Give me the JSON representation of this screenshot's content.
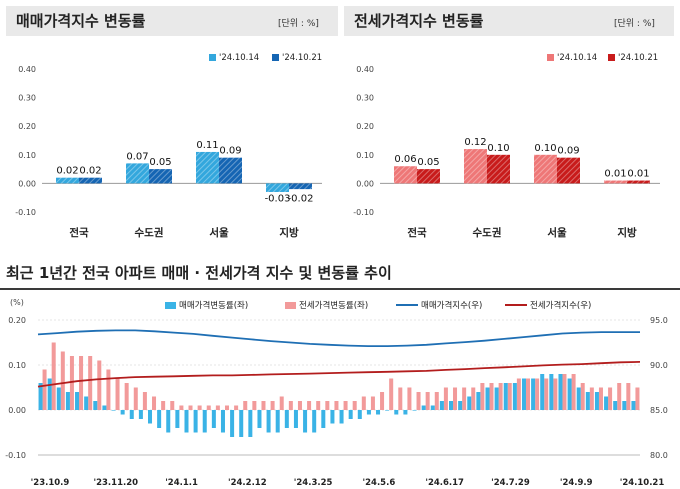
{
  "sales_panel": {
    "title": "매매가격지수 변동률",
    "unit": "[단위 : %]",
    "legend": [
      "'24.10.14",
      "'24.10.21"
    ],
    "colors": [
      "#33a7dd",
      "#1565b3"
    ]
  },
  "jeonse_panel": {
    "title": "전세가격지수 변동률",
    "unit": "[단위 : %]",
    "legend": [
      "'24.10.14",
      "'24.10.21"
    ],
    "colors": [
      "#ee7777",
      "#c81b1b"
    ]
  },
  "trend": {
    "title": "최근 1년간 전국 아파트 매매 · 전세가격 지수 및 변동률 추이",
    "left_unit": "(%)",
    "legend": [
      "매매가격변동률(좌)",
      "전세가격변동률(좌)",
      "매매가격지수(우)",
      "전세가격지수(우)"
    ],
    "colors": {
      "sales_rate": "#3ab3e6",
      "jeonse_rate": "#f29a9a",
      "sales_index": "#1f6fb4",
      "jeonse_index": "#b31d1d"
    }
  },
  "chart_data": [
    {
      "type": "bar",
      "title": "매매가격지수 변동률",
      "categories": [
        "전국",
        "수도권",
        "서울",
        "지방"
      ],
      "series": [
        {
          "name": "'24.10.14",
          "values": [
            0.02,
            0.07,
            0.11,
            -0.03
          ]
        },
        {
          "name": "'24.10.21",
          "values": [
            0.02,
            0.05,
            0.09,
            -0.02
          ]
        }
      ],
      "data_labels": [
        "0.02",
        "0.02",
        "0.07",
        "0.05",
        "0.11",
        "0.09",
        "-0.03",
        "-0.02"
      ],
      "ylim": [
        -0.1,
        0.4
      ],
      "yticks": [
        "-0.10",
        "0.00",
        "0.10",
        "0.20",
        "0.30",
        "0.40"
      ]
    },
    {
      "type": "bar",
      "title": "전세가격지수 변동률",
      "categories": [
        "전국",
        "수도권",
        "서울",
        "지방"
      ],
      "series": [
        {
          "name": "'24.10.14",
          "values": [
            0.06,
            0.12,
            0.1,
            0.01
          ]
        },
        {
          "name": "'24.10.21",
          "values": [
            0.05,
            0.1,
            0.09,
            0.01
          ]
        }
      ],
      "data_labels": [
        "0.06",
        "0.05",
        "0.12",
        "0.10",
        "0.10",
        "0.09",
        "0.01",
        "0.01"
      ],
      "ylim": [
        -0.1,
        0.4
      ],
      "yticks": [
        "-0.10",
        "0.00",
        "0.10",
        "0.20",
        "0.30",
        "0.40"
      ]
    },
    {
      "type": "bar+line",
      "title": "최근 1년간 전국 아파트 매매 · 전세가격 지수 및 변동률 추이",
      "x_tick_labels": [
        "'23.10.9",
        "'23.11.20",
        "'24.1.1",
        "'24.2.12",
        "'24.3.25",
        "'24.5.6",
        "'24.6.17",
        "'24.7.29",
        "'24.9.9",
        "'24.10.21"
      ],
      "y_left": {
        "ylim": [
          -0.1,
          0.2
        ],
        "ticks": [
          "-0.10",
          "0.00",
          "0.10",
          "0.20"
        ]
      },
      "y_right": {
        "ylim": [
          80.0,
          95.0
        ],
        "ticks": [
          "80.0",
          "85.0",
          "90.0",
          "95.0"
        ]
      },
      "series": [
        {
          "name": "매매가격변동률(좌)",
          "type": "bar",
          "axis": "left",
          "values": [
            0.06,
            0.07,
            0.05,
            0.04,
            0.04,
            0.03,
            0.02,
            0.01,
            0.0,
            -0.01,
            -0.02,
            -0.02,
            -0.03,
            -0.04,
            -0.05,
            -0.04,
            -0.05,
            -0.05,
            -0.05,
            -0.04,
            -0.05,
            -0.06,
            -0.06,
            -0.06,
            -0.04,
            -0.05,
            -0.05,
            -0.04,
            -0.04,
            -0.05,
            -0.05,
            -0.04,
            -0.03,
            -0.03,
            -0.02,
            -0.02,
            -0.01,
            -0.01,
            0.0,
            -0.01,
            -0.01,
            0.0,
            0.01,
            0.01,
            0.02,
            0.02,
            0.02,
            0.03,
            0.04,
            0.05,
            0.05,
            0.06,
            0.06,
            0.07,
            0.07,
            0.08,
            0.08,
            0.08,
            0.07,
            0.05,
            0.04,
            0.04,
            0.03,
            0.02,
            0.02,
            0.02
          ]
        },
        {
          "name": "전세가격변동률(좌)",
          "type": "bar",
          "axis": "left",
          "values": [
            0.09,
            0.15,
            0.13,
            0.12,
            0.12,
            0.12,
            0.11,
            0.09,
            0.07,
            0.06,
            0.05,
            0.04,
            0.03,
            0.02,
            0.02,
            0.01,
            0.01,
            0.01,
            0.01,
            0.01,
            0.01,
            0.01,
            0.02,
            0.02,
            0.02,
            0.02,
            0.03,
            0.02,
            0.02,
            0.02,
            0.02,
            0.02,
            0.02,
            0.02,
            0.02,
            0.03,
            0.03,
            0.04,
            0.07,
            0.05,
            0.05,
            0.04,
            0.04,
            0.04,
            0.05,
            0.05,
            0.05,
            0.05,
            0.06,
            0.06,
            0.06,
            0.06,
            0.07,
            0.07,
            0.07,
            0.07,
            0.07,
            0.08,
            0.08,
            0.06,
            0.05,
            0.05,
            0.05,
            0.06,
            0.06,
            0.05
          ]
        },
        {
          "name": "매매가격지수(우)",
          "type": "line",
          "axis": "right",
          "values": [
            93.4,
            93.55,
            93.7,
            93.8,
            93.85,
            93.85,
            93.75,
            93.6,
            93.45,
            93.25,
            93.05,
            92.85,
            92.65,
            92.5,
            92.35,
            92.25,
            92.15,
            92.1,
            92.1,
            92.15,
            92.25,
            92.4,
            92.55,
            92.7,
            92.9,
            93.1,
            93.3,
            93.5,
            93.6,
            93.65,
            93.65,
            93.65
          ]
        },
        {
          "name": "전세가격지수(우)",
          "type": "line",
          "axis": "right",
          "values": [
            87.6,
            87.9,
            88.2,
            88.4,
            88.55,
            88.65,
            88.7,
            88.75,
            88.8,
            88.85,
            88.85,
            88.9,
            88.95,
            89.0,
            89.05,
            89.1,
            89.15,
            89.2,
            89.25,
            89.3,
            89.35,
            89.45,
            89.55,
            89.65,
            89.75,
            89.85,
            89.95,
            90.05,
            90.1,
            90.2,
            90.3,
            90.35
          ]
        }
      ]
    }
  ]
}
